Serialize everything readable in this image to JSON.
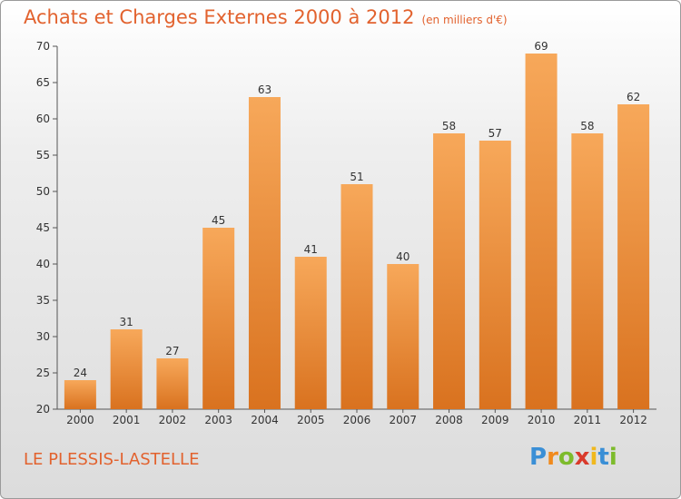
{
  "title": "Achats et Charges Externes 2000 à 2012",
  "unit_note": "(en milliers d'€)",
  "place": "LE PLESSIS-LASTELLE",
  "logo": {
    "letters": [
      "P",
      "r",
      "o",
      "x",
      "i",
      "t",
      "i"
    ],
    "colors": [
      "#3a8fd6",
      "#f08a1d",
      "#7dbb2c",
      "#d93a2b",
      "#f0b81d",
      "#3a8fd6",
      "#7dbb2c"
    ]
  },
  "colors": {
    "title": "#e2622e",
    "bar_top": "#f7a85a",
    "bar_bottom": "#d9721f",
    "axis": "#555555"
  },
  "chart_data": {
    "type": "bar",
    "categories": [
      "2000",
      "2001",
      "2002",
      "2003",
      "2004",
      "2005",
      "2006",
      "2007",
      "2008",
      "2009",
      "2010",
      "2011",
      "2012"
    ],
    "values": [
      24,
      31,
      27,
      45,
      63,
      41,
      51,
      40,
      58,
      57,
      69,
      58,
      62
    ],
    "data_labels": [
      "24",
      "31",
      "27",
      "45",
      "63",
      "41",
      "51",
      "40",
      "58",
      "57",
      "69",
      "58",
      "62"
    ],
    "y_ticks": [
      "20",
      "25",
      "30",
      "35",
      "40",
      "45",
      "50",
      "55",
      "60",
      "65",
      "70"
    ],
    "ylim": [
      20,
      70
    ],
    "grid": false,
    "legend": "none"
  }
}
